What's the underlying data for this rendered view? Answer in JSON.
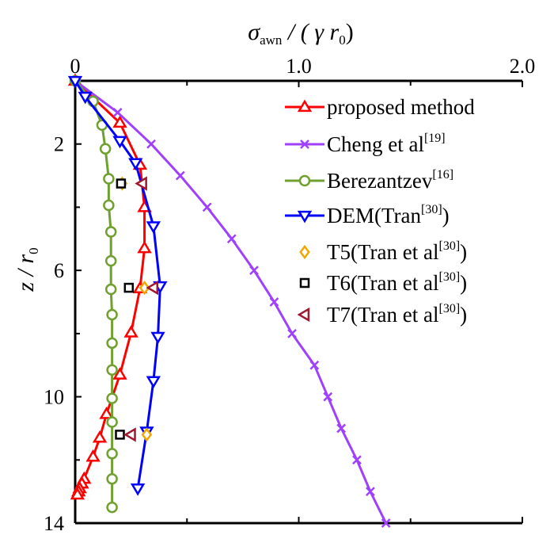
{
  "chart_data": {
    "type": "line",
    "title": "",
    "xlabel": {
      "main": "σ",
      "sub": "awn",
      "rest": " / ( γ r",
      "sub2": "0",
      "close": ")"
    },
    "ylabel": {
      "main": "z / r",
      "sub": "0"
    },
    "xlim": [
      0,
      2.0
    ],
    "ylim": [
      0,
      14
    ],
    "y_inverted": true,
    "x_axis_position": "top",
    "xticks": [
      0,
      1.0,
      2.0
    ],
    "xtick_labels": [
      "0",
      "1.0",
      "2.0"
    ],
    "xminor": [
      0.5,
      1.5
    ],
    "yticks": [
      2,
      6,
      10,
      14
    ],
    "ytick_labels": [
      "2",
      "6",
      "10",
      "14"
    ],
    "yminor": [
      4,
      8,
      12
    ],
    "grid": false,
    "legend_placement": "top-right",
    "series": [
      {
        "name": "proposed method",
        "sup": "",
        "color": "#ff0000",
        "marker": "triangle-up",
        "line": true,
        "x": [
          0,
          0.2,
          0.29,
          0.31,
          0.31,
          0.29,
          0.25,
          0.2,
          0.14,
          0.11,
          0.08,
          0.04,
          0.03,
          0.02,
          0.015,
          0.01
        ],
        "z": [
          0,
          1.33,
          2.66,
          4.0,
          5.3,
          6.57,
          7.97,
          9.3,
          10.55,
          11.3,
          11.9,
          12.6,
          12.75,
          12.9,
          13.0,
          13.1
        ]
      },
      {
        "name": "Cheng et al",
        "sup": "[19]",
        "color": "#a040ff",
        "marker": "x",
        "line": true,
        "x": [
          0,
          0.19,
          0.34,
          0.47,
          0.59,
          0.7,
          0.8,
          0.89,
          0.97,
          1.07,
          1.13,
          1.19,
          1.26,
          1.32,
          1.39
        ],
        "z": [
          0,
          1,
          2,
          3,
          4,
          5,
          6,
          7,
          8,
          9,
          10,
          11,
          12,
          13,
          14
        ]
      },
      {
        "name": "Berezantzev",
        "sup": "[16]",
        "color": "#70a030",
        "marker": "circle",
        "line": true,
        "x": [
          0,
          0.08,
          0.12,
          0.135,
          0.15,
          0.15,
          0.16,
          0.16,
          0.16,
          0.165,
          0.165,
          0.165,
          0.165,
          0.165,
          0.165,
          0.165,
          0.165
        ],
        "z": [
          0,
          0.65,
          1.4,
          2.15,
          3.1,
          3.94,
          4.78,
          5.7,
          6.6,
          7.4,
          8.3,
          9.15,
          10.05,
          10.8,
          11.8,
          12.6,
          13.5
        ]
      },
      {
        "name": "DEM(Tran",
        "sup": "[30]",
        "suffix": ")",
        "color": "#0000ff",
        "marker": "triangle-down",
        "line": true,
        "x": [
          0,
          0.045,
          0.2,
          0.27,
          0.35,
          0.38,
          0.37,
          0.35,
          0.32,
          0.28
        ],
        "z": [
          0,
          0.5,
          1.9,
          2.6,
          4.6,
          6.5,
          8.1,
          9.5,
          11.1,
          12.9
        ]
      },
      {
        "name": "T5(Tran et al",
        "sup": "[30]",
        "suffix": ")",
        "color": "#f0a800",
        "marker": "diamond",
        "line": false,
        "x": [
          0.21,
          0.31,
          0.32
        ],
        "z": [
          3.25,
          6.55,
          11.2
        ]
      },
      {
        "name": "T6(Tran et al",
        "sup": "[30]",
        "suffix": ")",
        "color": "#000000",
        "marker": "square",
        "line": false,
        "x": [
          0.205,
          0.24,
          0.2
        ],
        "z": [
          3.25,
          6.55,
          11.2
        ]
      },
      {
        "name": "T7(Tran et al",
        "sup": "[30]",
        "suffix": ")",
        "color": "#a01830",
        "marker": "triangle-left",
        "line": false,
        "x": [
          0.3,
          0.35,
          0.25
        ],
        "z": [
          3.25,
          6.55,
          11.2
        ]
      }
    ]
  }
}
